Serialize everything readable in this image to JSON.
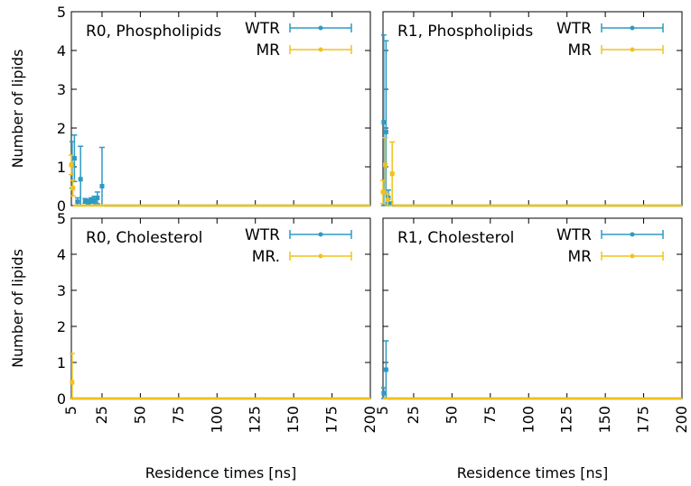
{
  "colors": {
    "wtr": "#2e9ac3",
    "mr": "#f2c21a",
    "frame": "#000000"
  },
  "chart_data": [
    {
      "type": "scatter",
      "title": "R0, Phospholipids",
      "xlabel": "",
      "ylabel": "Number of lipids",
      "xlim": [
        5,
        200
      ],
      "ylim": [
        0,
        5
      ],
      "xticks": [],
      "yticks": [
        "0",
        "1",
        "2",
        "3",
        "4",
        "5"
      ],
      "legend": "top-right",
      "series": [
        {
          "name": "WTR",
          "key": "wtr",
          "points": [
            {
              "x": 5.5,
              "y": 1.05,
              "err": 0.6
            },
            {
              "x": 7,
              "y": 1.22,
              "err": 0.6
            },
            {
              "x": 9,
              "y": 0.1,
              "err": 0.1
            },
            {
              "x": 11,
              "y": 0.68,
              "err": 0.85
            },
            {
              "x": 14,
              "y": 0.12,
              "err": 0.06
            },
            {
              "x": 16,
              "y": 0.1,
              "err": 0.06
            },
            {
              "x": 18,
              "y": 0.13,
              "err": 0.07
            },
            {
              "x": 20,
              "y": 0.12,
              "err": 0.12
            },
            {
              "x": 22,
              "y": 0.2,
              "err": 0.15
            },
            {
              "x": 25,
              "y": 0.5,
              "err": 1.0
            }
          ],
          "zero_from": 26
        },
        {
          "name": "MR",
          "key": "mr",
          "points": [
            {
              "x": 5,
              "y": 1.05,
              "err": 0.25
            },
            {
              "x": 6,
              "y": 0.45,
              "err": 0.2
            }
          ],
          "zero_from": 6
        }
      ]
    },
    {
      "type": "scatter",
      "title": "R1, Phospholipids",
      "xlabel": "",
      "ylabel": "",
      "xlim": [
        5,
        200
      ],
      "ylim": [
        0,
        5
      ],
      "xticks": [],
      "yticks": [],
      "legend": "top-right",
      "series": [
        {
          "name": "WTR",
          "key": "wtr",
          "points": [
            {
              "x": 5.5,
              "y": 2.15,
              "err": 2.25
            },
            {
              "x": 7,
              "y": 1.9,
              "err": 2.35
            },
            {
              "x": 8.5,
              "y": 0.2,
              "err": 0.2
            },
            {
              "x": 10,
              "y": 0.05,
              "err": 0.05
            }
          ],
          "zero_from": 11
        },
        {
          "name": "MR",
          "key": "mr",
          "points": [
            {
              "x": 5,
              "y": 0.35,
              "err": 0.3
            },
            {
              "x": 6.5,
              "y": 1.05,
              "err": 0.7
            },
            {
              "x": 8,
              "y": 0.15,
              "err": 0.15
            },
            {
              "x": 11,
              "y": 0.82,
              "err": 0.82
            }
          ],
          "zero_from": 12
        }
      ]
    },
    {
      "type": "scatter",
      "title": "R0, Cholesterol",
      "xlabel": "Residence times [ns]",
      "ylabel": "Number of lipids",
      "xlim": [
        5,
        200
      ],
      "ylim": [
        0,
        5
      ],
      "xticks": [
        "5",
        "25",
        "50",
        "75",
        "100",
        "125",
        "150",
        "175",
        "200"
      ],
      "yticks": [
        "0",
        "1",
        "2",
        "3",
        "4",
        "5"
      ],
      "legend": "top-right",
      "series": [
        {
          "name": "WTR",
          "key": "wtr",
          "points": [],
          "zero_from": 5
        },
        {
          "name": "MR.",
          "key": "mr",
          "points": [
            {
              "x": 5.5,
              "y": 0.45,
              "err": 0.8
            }
          ],
          "zero_from": 6
        }
      ]
    },
    {
      "type": "scatter",
      "title": "R1, Cholesterol",
      "xlabel": "Residence times [ns]",
      "ylabel": "",
      "xlim": [
        5,
        200
      ],
      "ylim": [
        0,
        5
      ],
      "xticks": [
        "5",
        "25",
        "50",
        "75",
        "100",
        "125",
        "150",
        "175",
        "200"
      ],
      "yticks": [],
      "legend": "top-right",
      "series": [
        {
          "name": "WTR",
          "key": "wtr",
          "points": [
            {
              "x": 5.5,
              "y": 0.15,
              "err": 0.15
            },
            {
              "x": 7,
              "y": 0.8,
              "err": 0.8
            }
          ],
          "zero_from": 8
        },
        {
          "name": "MR",
          "key": "mr",
          "points": [],
          "zero_from": 5
        }
      ]
    }
  ]
}
